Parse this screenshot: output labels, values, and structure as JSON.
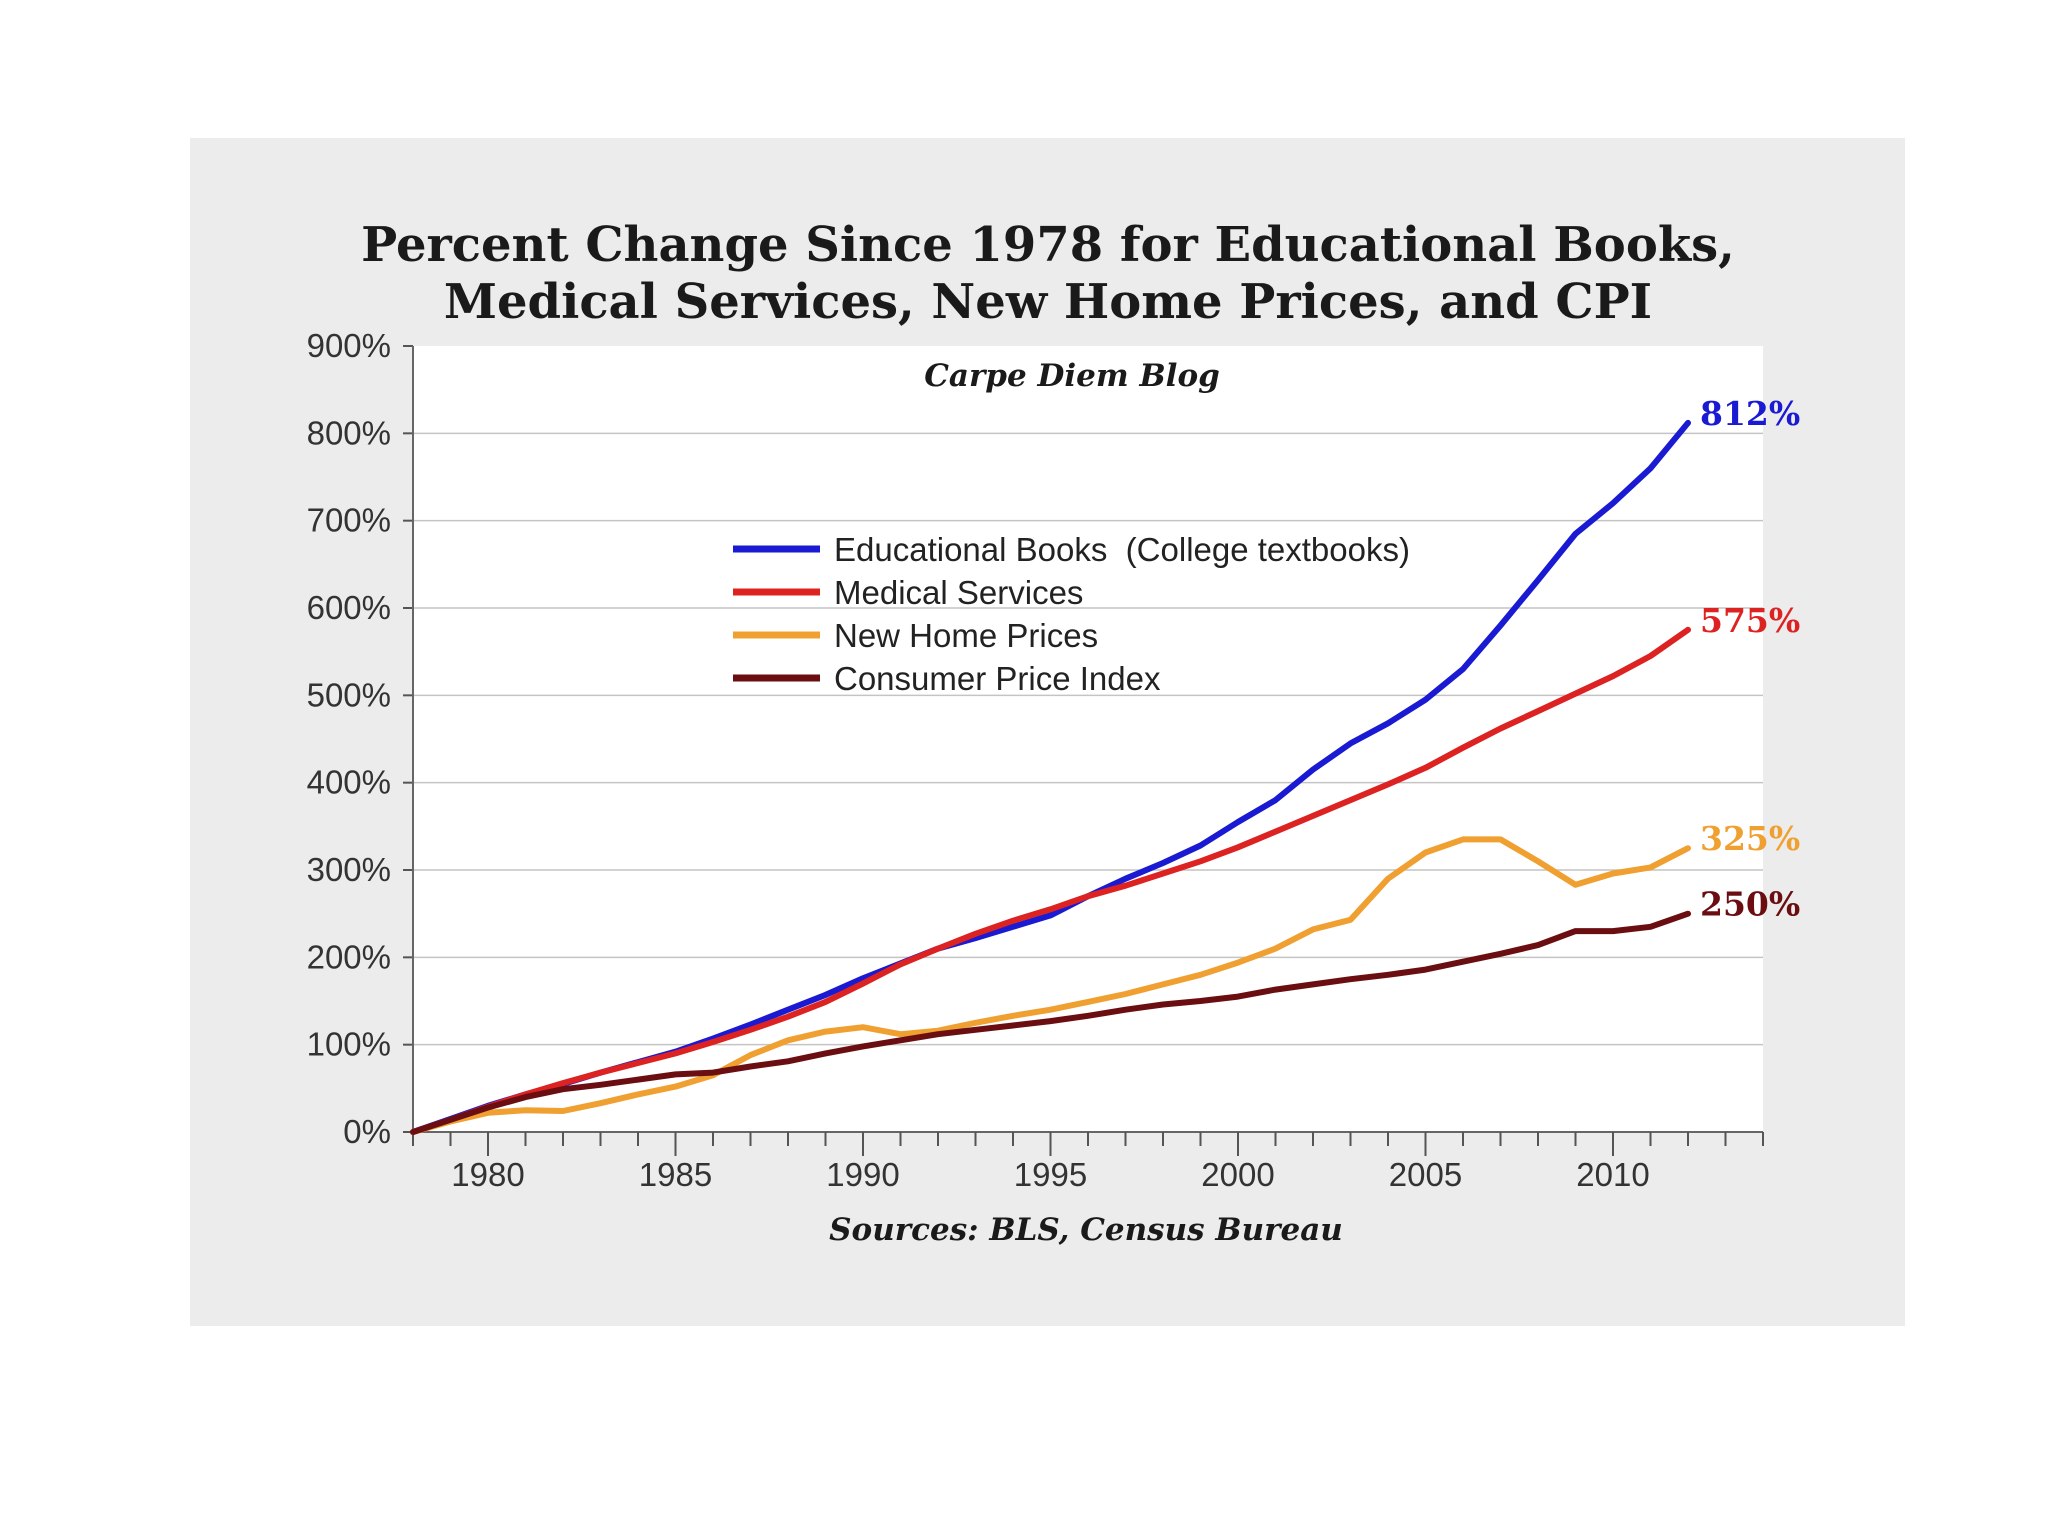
{
  "chart_data": {
    "type": "line",
    "title_lines": [
      "Percent Change Since 1978 for Educational Books,",
      "Medical Services, New Home Prices, and CPI"
    ],
    "subtitle": "Carpe Diem Blog",
    "source": "Sources: BLS, Census Bureau",
    "xlim": [
      1978,
      2014
    ],
    "ylim": [
      0,
      900
    ],
    "x_tick_labels": [
      {
        "x": 1980,
        "label": "1980"
      },
      {
        "x": 1985,
        "label": "1985"
      },
      {
        "x": 1990,
        "label": "1990"
      },
      {
        "x": 1995,
        "label": "1995"
      },
      {
        "x": 2000,
        "label": "2000"
      },
      {
        "x": 2005,
        "label": "2005"
      },
      {
        "x": 2010,
        "label": "2010"
      }
    ],
    "y_ticks": [
      {
        "y": 0,
        "label": "0%"
      },
      {
        "y": 100,
        "label": "100%"
      },
      {
        "y": 200,
        "label": "200%"
      },
      {
        "y": 300,
        "label": "300%"
      },
      {
        "y": 400,
        "label": "400%"
      },
      {
        "y": 500,
        "label": "500%"
      },
      {
        "y": 600,
        "label": "600%"
      },
      {
        "y": 700,
        "label": "700%"
      },
      {
        "y": 800,
        "label": "800%"
      },
      {
        "y": 900,
        "label": "900%"
      }
    ],
    "grid": true,
    "legend_position": "upper-center",
    "x": [
      1978,
      1979,
      1980,
      1981,
      1982,
      1983,
      1984,
      1985,
      1986,
      1987,
      1988,
      1989,
      1990,
      1991,
      1992,
      1993,
      1994,
      1995,
      1996,
      1997,
      1998,
      1999,
      2000,
      2001,
      2002,
      2003,
      2004,
      2005,
      2006,
      2007,
      2008,
      2009,
      2010,
      2011,
      2012
    ],
    "series": [
      {
        "name": "Educational Books  (College textbooks)",
        "color": "#1a1ad2",
        "end_label": "812%",
        "values": [
          0,
          15,
          30,
          43,
          55,
          68,
          80,
          92,
          107,
          123,
          140,
          157,
          176,
          193,
          210,
          222,
          235,
          248,
          270,
          290,
          308,
          328,
          355,
          380,
          415,
          445,
          468,
          495,
          530,
          580,
          632,
          685,
          720,
          760,
          812
        ]
      },
      {
        "name": "Medical Services",
        "color": "#dd2222",
        "end_label": "575%",
        "values": [
          0,
          14,
          29,
          43,
          56,
          68,
          79,
          90,
          103,
          117,
          132,
          149,
          170,
          192,
          210,
          227,
          242,
          255,
          270,
          282,
          296,
          310,
          326,
          344,
          362,
          380,
          398,
          417,
          440,
          462,
          482,
          502,
          522,
          545,
          575
        ]
      },
      {
        "name": "New Home Prices",
        "color": "#f0a030",
        "end_label": "325%",
        "values": [
          0,
          12,
          22,
          25,
          24,
          33,
          43,
          52,
          65,
          88,
          105,
          115,
          120,
          112,
          116,
          125,
          133,
          140,
          149,
          158,
          169,
          180,
          194,
          210,
          232,
          243,
          290,
          320,
          335,
          335,
          310,
          283,
          296,
          303,
          325
        ]
      },
      {
        "name": "Consumer Price Index",
        "color": "#6b0e12",
        "end_label": "250%",
        "values": [
          0,
          14,
          28,
          40,
          49,
          54,
          60,
          66,
          68,
          75,
          81,
          90,
          98,
          105,
          112,
          117,
          122,
          127,
          133,
          140,
          146,
          150,
          155,
          163,
          169,
          175,
          180,
          186,
          195,
          204,
          214,
          230,
          230,
          235,
          250
        ]
      }
    ]
  }
}
